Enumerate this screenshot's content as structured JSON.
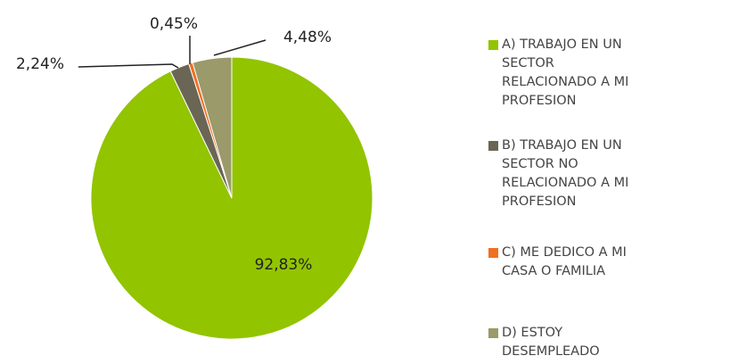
{
  "chart_data": {
    "type": "pie",
    "categories": [
      "A) TRABAJO EN UN SECTOR RELACIONADO A MI PROFESION",
      "B) TRABAJO EN UN SECTOR NO RELACIONADO A MI PROFESION",
      "C) ME DEDICO A MI CASA O FAMILIA",
      "D) ESTOY DESEMPLEADO"
    ],
    "values": [
      92.83,
      2.24,
      0.45,
      4.48
    ],
    "value_labels": [
      "92,83%",
      "2,24%",
      "0,45%",
      "4,48%"
    ],
    "colors": [
      "#92c400",
      "#6b6555",
      "#f07020",
      "#9a9a6a"
    ],
    "legend": "right"
  }
}
